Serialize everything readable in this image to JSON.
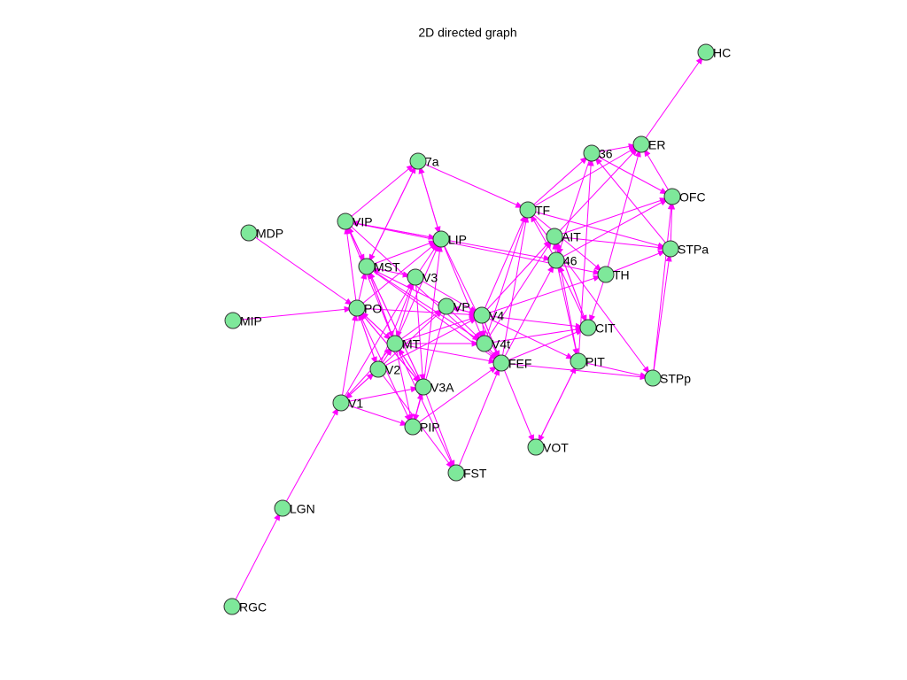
{
  "title": "2D directed graph",
  "nodes": [
    {
      "label": "HC"
    },
    {
      "label": "ER"
    },
    {
      "label": "36"
    },
    {
      "label": "OFC"
    },
    {
      "label": "TF"
    },
    {
      "label": "AIT"
    },
    {
      "label": "STPa"
    },
    {
      "label": "46"
    },
    {
      "label": "TH"
    },
    {
      "label": "7a"
    },
    {
      "label": "VIP"
    },
    {
      "label": "MDP"
    },
    {
      "label": "LIP"
    },
    {
      "label": "MST"
    },
    {
      "label": "V3"
    },
    {
      "label": "VP"
    },
    {
      "label": "PO"
    },
    {
      "label": "V4"
    },
    {
      "label": "MIP"
    },
    {
      "label": "MT"
    },
    {
      "label": "V4t"
    },
    {
      "label": "CIT"
    },
    {
      "label": "V2"
    },
    {
      "label": "FEF"
    },
    {
      "label": "PIT"
    },
    {
      "label": "V3A"
    },
    {
      "label": "STPp"
    },
    {
      "label": "V1"
    },
    {
      "label": "PIP"
    },
    {
      "label": "VOT"
    },
    {
      "label": "FST"
    },
    {
      "label": "LGN"
    },
    {
      "label": "RGC"
    }
  ]
}
